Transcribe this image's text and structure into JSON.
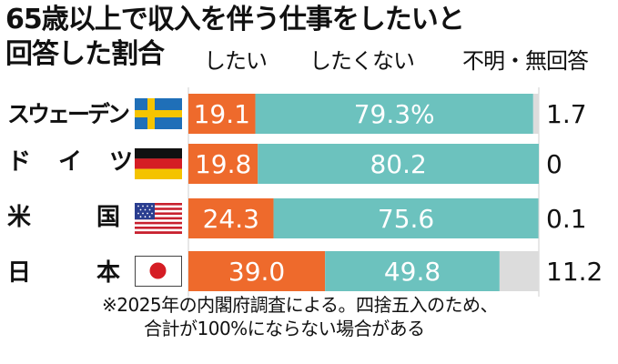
{
  "title_line1": "65歳以上で収入を伴う仕事をしたいと",
  "title_line2": "回答した割合",
  "chart_data": {
    "type": "bar",
    "stacked": true,
    "orientation": "horizontal",
    "categories": [
      "スウェーデン",
      "ドイツ",
      "米国",
      "日本"
    ],
    "series": [
      {
        "name": "したい",
        "values": [
          19.1,
          19.8,
          24.3,
          39.0
        ],
        "labels": [
          "19.1",
          "19.8",
          "24.3",
          "39.0"
        ],
        "color": "#ee6a2c"
      },
      {
        "name": "したくない",
        "values": [
          79.3,
          80.2,
          75.6,
          49.8
        ],
        "labels": [
          "79.3%",
          "80.2",
          "75.6",
          "49.8"
        ],
        "color": "#6cc2be"
      },
      {
        "name": "不明・無回答",
        "values": [
          1.7,
          0,
          0.1,
          11.2
        ],
        "labels": [
          "1.7",
          "0",
          "0.1",
          "11.2"
        ],
        "color": "#dcdcdc"
      }
    ],
    "xlim": [
      0,
      100
    ]
  },
  "flags": [
    "sweden-flag-icon",
    "germany-flag-icon",
    "usa-flag-icon",
    "japan-flag-icon"
  ],
  "note_line1": "※2025年の内閣府調査による。四捨五入のため、",
  "note_line2": "合計が100%にならない場合がある"
}
